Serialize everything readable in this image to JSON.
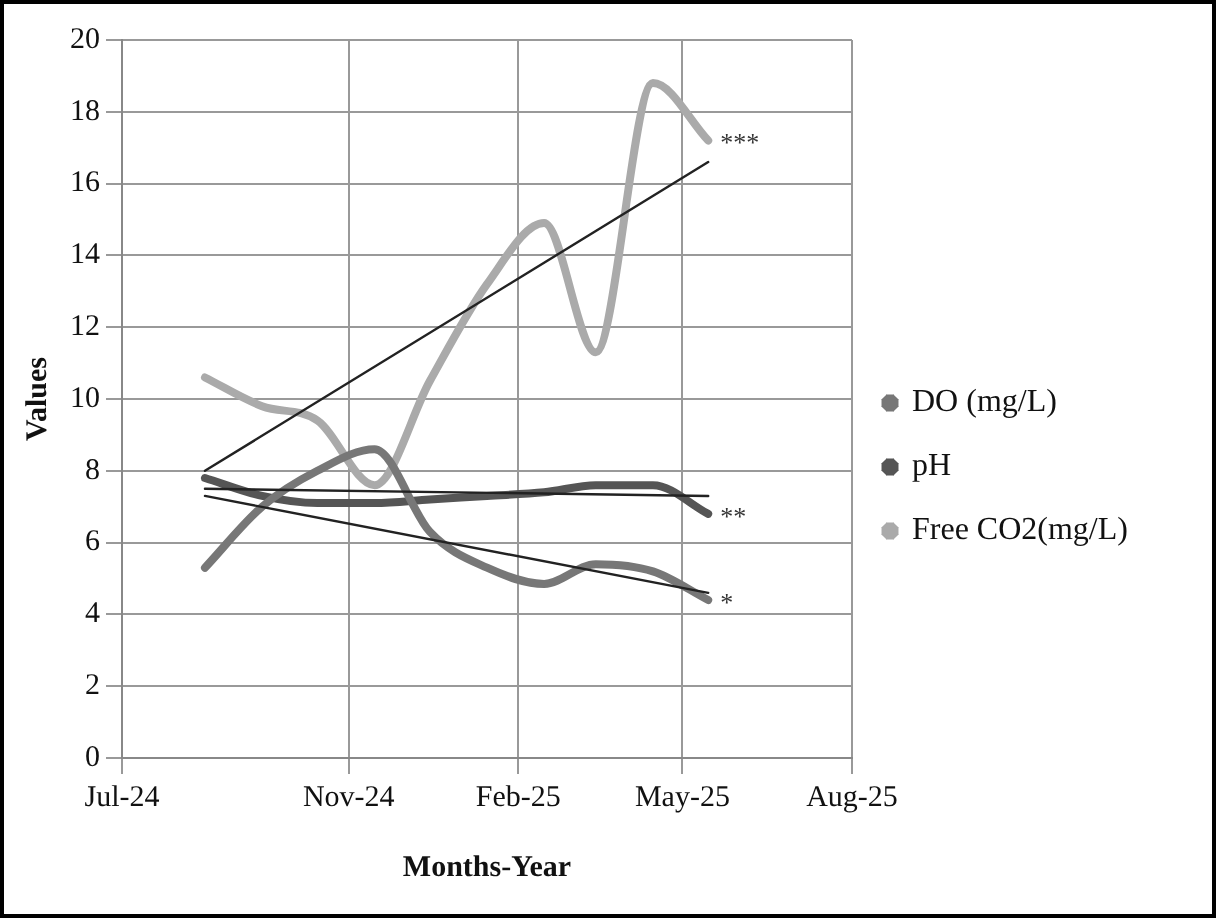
{
  "chart_data": {
    "type": "line",
    "xlabel": "Months-Year",
    "ylabel": "Values",
    "x": [
      "2024-08-15",
      "2024-09-15",
      "2024-10-15",
      "2024-11-15",
      "2024-12-15",
      "2025-01-15",
      "2025-02-15",
      "2025-03-15",
      "2025-04-15",
      "2025-05-15"
    ],
    "series": [
      {
        "name": "DO (mg/L)",
        "color": "#777777",
        "values": [
          5.3,
          7.0,
          8.0,
          8.6,
          6.3,
          5.3,
          4.85,
          5.4,
          5.2,
          4.4
        ]
      },
      {
        "name": "pH",
        "color": "#555555",
        "values": [
          7.8,
          7.3,
          7.1,
          7.1,
          7.2,
          7.3,
          7.4,
          7.6,
          7.6,
          6.8
        ]
      },
      {
        "name": "Free CO2(mg/L)",
        "color": "#aaaaaa",
        "values": [
          10.6,
          9.8,
          9.4,
          7.6,
          10.5,
          13.2,
          14.9,
          11.3,
          18.8,
          17.2
        ]
      },
      {
        "color": "#222222",
        "x": [
          "2024-08-15",
          "2025-05-15"
        ],
        "values": [
          7.3,
          4.6
        ]
      },
      {
        "color": "#222222",
        "x": [
          "2024-08-15",
          "2025-05-15"
        ],
        "values": [
          7.5,
          7.3
        ]
      },
      {
        "color": "#222222",
        "x": [
          "2024-08-15",
          "2025-05-15"
        ],
        "values": [
          8.0,
          16.6
        ]
      }
    ],
    "annotations": [
      {
        "text": "*",
        "x": "2025-05-15",
        "y": 4.4
      },
      {
        "text": "**",
        "x": "2025-05-15",
        "y": 6.8
      },
      {
        "text": "***",
        "x": "2025-05-15",
        "y": 17.2
      }
    ],
    "xlim": [
      "2024-07-01",
      "2025-08-01"
    ],
    "xticks": [
      {
        "value": "2024-07-01",
        "label": "Jul-24"
      },
      {
        "value": "2024-11-01",
        "label": "Nov-24"
      },
      {
        "value": "2025-02-01",
        "label": "Feb-25"
      },
      {
        "value": "2025-05-01",
        "label": "May-25"
      },
      {
        "value": "2025-08-01",
        "label": "Aug-25"
      }
    ],
    "ylim": [
      0,
      20
    ],
    "yticks": [
      0,
      2,
      4,
      6,
      8,
      10,
      12,
      14,
      16,
      18,
      20
    ],
    "grid": true,
    "legend": "right",
    "marker": "none",
    "line_style": "solid"
  }
}
